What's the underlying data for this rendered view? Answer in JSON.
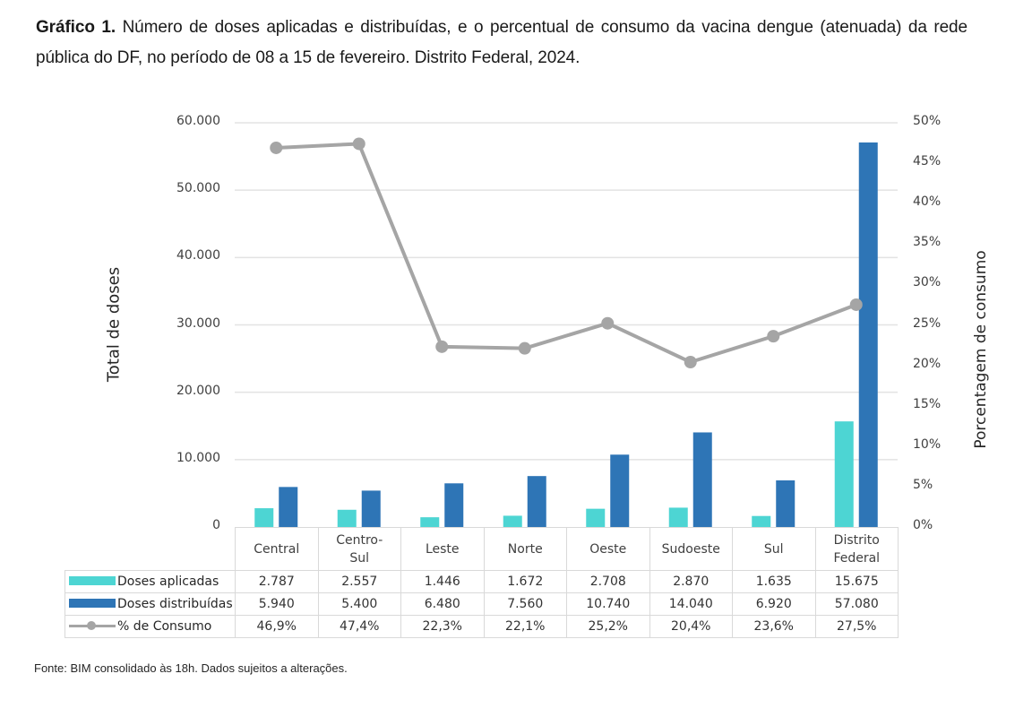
{
  "caption": {
    "label": "Gráfico 1.",
    "text": " Número de doses aplicadas e distribuídas, e o percentual de consumo da vacina dengue (atenuada) da rede pública do DF, no período de 08 a 15 de fevereiro. Distrito Federal, 2024."
  },
  "source": "Fonte: BIM consolidado às 18h. Dados sujeitos a alterações.",
  "colors": {
    "aplicadas": "#4dd5d3",
    "distribuidas": "#2e75b6",
    "consumo": "#a5a5a5",
    "grid": "#e3e3e3"
  },
  "chart_data": {
    "type": "bar",
    "title": "Gráfico 1. Número de doses aplicadas e distribuídas, e o percentual de consumo da vacina dengue (atenuada) da rede pública do DF, no período de 08 a 15 de fevereiro. Distrito Federal, 2024.",
    "categories": [
      [
        "Central"
      ],
      [
        "Centro-",
        "Sul"
      ],
      [
        "Leste"
      ],
      [
        "Norte"
      ],
      [
        "Oeste"
      ],
      [
        "Sudoeste"
      ],
      [
        "Sul"
      ],
      [
        "Distrito",
        "Federal"
      ]
    ],
    "ylabel": "Total de doses",
    "y2label": "Porcentagem de consumo",
    "ylim": [
      0,
      60000
    ],
    "y2lim": [
      0,
      50
    ],
    "yticks": [
      "0",
      "10.000",
      "20.000",
      "30.000",
      "40.000",
      "50.000",
      "60.000"
    ],
    "y2ticks": [
      "0%",
      "5%",
      "10%",
      "15%",
      "20%",
      "25%",
      "30%",
      "35%",
      "40%",
      "45%",
      "50%"
    ],
    "grid": true,
    "legend": "table-bottom-left",
    "series": [
      {
        "name": "Doses aplicadas",
        "kind": "bar",
        "axis": "left",
        "values": [
          2787,
          2557,
          1446,
          1672,
          2708,
          2870,
          1635,
          15675
        ],
        "labels": [
          "2.787",
          "2.557",
          "1.446",
          "1.672",
          "2.708",
          "2.870",
          "1.635",
          "15.675"
        ]
      },
      {
        "name": "Doses distribuídas",
        "kind": "bar",
        "axis": "left",
        "values": [
          5940,
          5400,
          6480,
          7560,
          10740,
          14040,
          6920,
          57080
        ],
        "labels": [
          "5.940",
          "5.400",
          "6.480",
          "7.560",
          "10.740",
          "14.040",
          "6.920",
          "57.080"
        ]
      },
      {
        "name": "% de Consumo",
        "kind": "line",
        "axis": "right",
        "values": [
          46.9,
          47.4,
          22.3,
          22.1,
          25.2,
          20.4,
          23.6,
          27.5
        ],
        "labels": [
          "46,9%",
          "47,4%",
          "22,3%",
          "22,1%",
          "25,2%",
          "20,4%",
          "23,6%",
          "27,5%"
        ]
      }
    ]
  }
}
